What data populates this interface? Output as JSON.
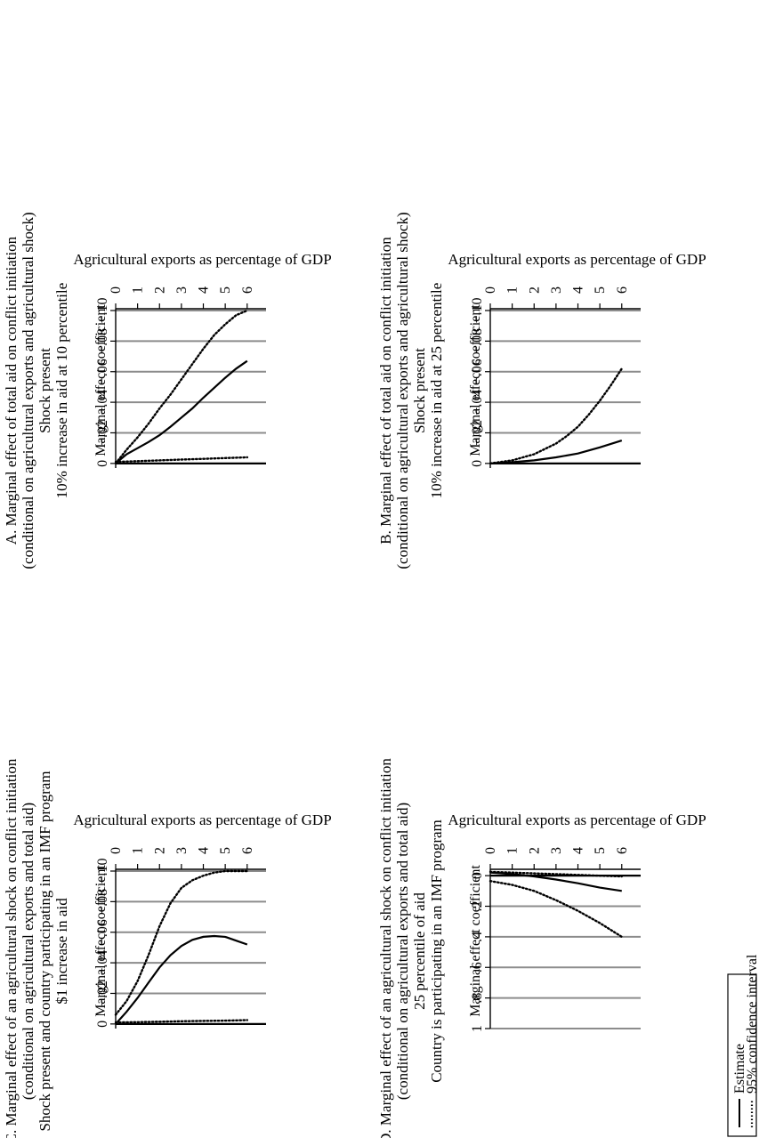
{
  "chart_data": [
    {
      "id": "A",
      "type": "line",
      "title_lines": [
        "A. Marginal effect of total aid on conflict initiation",
        "(conditional on agricultural exports and agricultural shock)",
        "Shock present",
        "10% increase in aid at 10 percentile"
      ],
      "xlabel": "Agricultural exports as percentage of GDP",
      "ylabel": "Marginal effect coefficient",
      "xlim": [
        0,
        6.7
      ],
      "ylim": [
        -0.1,
        0.003
      ],
      "xticks": [
        0,
        1,
        2,
        3,
        4,
        5,
        6
      ],
      "xtick_labels": [
        "0",
        "1",
        "2",
        "3",
        "4",
        "5",
        "6"
      ],
      "yticks": [
        0,
        -0.02,
        -0.04,
        -0.06,
        -0.08,
        -0.1
      ],
      "ytick_labels": [
        "0",
        "−.02",
        "−.04",
        "−.06",
        "−.08",
        "−.10"
      ],
      "gridlines": [
        -0.02,
        -0.04,
        -0.06,
        -0.08,
        -0.1
      ],
      "zero_line": 0,
      "series": [
        {
          "name": "Estimate",
          "style": "solid",
          "x": [
            0,
            0.5,
            1,
            1.5,
            2,
            2.5,
            3,
            3.5,
            4,
            4.5,
            5,
            5.5,
            6
          ],
          "y": [
            0,
            -0.006,
            -0.01,
            -0.014,
            -0.0185,
            -0.024,
            -0.03,
            -0.036,
            -0.043,
            -0.0495,
            -0.056,
            -0.062,
            -0.067
          ]
        },
        {
          "name": "95% confidence interval (upper)",
          "style": "dotted",
          "x": [
            0,
            1,
            2,
            3,
            4,
            5,
            6
          ],
          "y": [
            -0.001,
            -0.0015,
            -0.002,
            -0.0025,
            -0.003,
            -0.0035,
            -0.004
          ]
        },
        {
          "name": "95% confidence interval (lower)",
          "style": "dotted",
          "x": [
            0,
            0.5,
            1,
            1.5,
            2,
            2.5,
            3,
            3.5,
            4,
            4.5,
            5,
            5.5,
            6
          ],
          "y": [
            0,
            -0.009,
            -0.017,
            -0.026,
            -0.036,
            -0.045,
            -0.055,
            -0.065,
            -0.075,
            -0.084,
            -0.091,
            -0.097,
            -0.1
          ]
        }
      ]
    },
    {
      "id": "B",
      "type": "line",
      "title_lines": [
        "B. Marginal effect of total aid on conflict initiation",
        "(conditional on agricultural exports and agricultural shock)",
        "Shock present",
        "10% increase in aid at 25 percentile"
      ],
      "xlabel": "Agricultural exports as percentage of GDP",
      "ylabel": "Marginal effect coefficient",
      "xlim": [
        0,
        6.7
      ],
      "ylim": [
        -0.1,
        0.003
      ],
      "xticks": [
        0,
        1,
        2,
        3,
        4,
        5,
        6
      ],
      "xtick_labels": [
        "0",
        "1",
        "2",
        "3",
        "4",
        "5",
        "6"
      ],
      "yticks": [
        0,
        -0.02,
        -0.04,
        -0.06,
        -0.08,
        -0.1
      ],
      "ytick_labels": [
        "0",
        "−.02",
        "−.04",
        "−.06",
        "−.08",
        "−.10"
      ],
      "gridlines": [
        -0.02,
        -0.04,
        -0.06,
        -0.08,
        -0.1
      ],
      "zero_line": 0,
      "series": [
        {
          "name": "Estimate",
          "style": "solid",
          "x": [
            0,
            1,
            2,
            3,
            4,
            5,
            6
          ],
          "y": [
            0,
            -0.0008,
            -0.002,
            -0.004,
            -0.0065,
            -0.0105,
            -0.015
          ]
        },
        {
          "name": "95% confidence interval (lower)",
          "style": "dotted",
          "x": [
            0,
            1,
            2,
            3,
            3.5,
            4,
            4.5,
            5,
            5.5,
            6
          ],
          "y": [
            0,
            -0.002,
            -0.006,
            -0.013,
            -0.018,
            -0.024,
            -0.032,
            -0.041,
            -0.051,
            -0.062
          ]
        }
      ]
    },
    {
      "id": "C",
      "type": "line",
      "title_lines": [
        "C. Marginal effect of an agricultural shock on conflict initiation",
        "(conditional on agricultural exports and total aid)",
        "Shock present and country participating in an IMF program",
        "$1 increase in aid"
      ],
      "xlabel": "Agricultural exports as percentage of GDP",
      "ylabel": "Marginal effect coefficient",
      "xlim": [
        0,
        6.7
      ],
      "ylim": [
        -0.1,
        0.003
      ],
      "xticks": [
        0,
        1,
        2,
        3,
        4,
        5,
        6
      ],
      "xtick_labels": [
        "0",
        "1",
        "2",
        "3",
        "4",
        "5",
        "6"
      ],
      "yticks": [
        0,
        -0.02,
        -0.04,
        -0.06,
        -0.08,
        -0.1
      ],
      "ytick_labels": [
        "0",
        "−.02",
        "−.04",
        "−.06",
        "−.08",
        "−.10"
      ],
      "gridlines": [
        -0.02,
        -0.04,
        -0.06,
        -0.08,
        -0.1
      ],
      "zero_line": 0,
      "series": [
        {
          "name": "Estimate",
          "style": "solid",
          "x": [
            0,
            0.5,
            1,
            1.5,
            2,
            2.5,
            3,
            3.5,
            4,
            4.5,
            5,
            5.5,
            6
          ],
          "y": [
            0,
            -0.008,
            -0.017,
            -0.027,
            -0.037,
            -0.045,
            -0.051,
            -0.055,
            -0.057,
            -0.0575,
            -0.057,
            -0.0545,
            -0.052
          ]
        },
        {
          "name": "95% confidence interval (upper)",
          "style": "dotted",
          "x": [
            0,
            1,
            2,
            3,
            4,
            5,
            6
          ],
          "y": [
            -0.001,
            -0.0012,
            -0.0015,
            -0.0018,
            -0.002,
            -0.0022,
            -0.0025
          ]
        },
        {
          "name": "95% confidence interval (lower)",
          "style": "dotted",
          "x": [
            0,
            0.5,
            1,
            1.5,
            2,
            2.5,
            3,
            3.5,
            4,
            4.5,
            5,
            5.5,
            6
          ],
          "y": [
            -0.006,
            -0.015,
            -0.028,
            -0.045,
            -0.064,
            -0.079,
            -0.089,
            -0.094,
            -0.097,
            -0.099,
            -0.1,
            -0.1,
            -0.1
          ]
        }
      ]
    },
    {
      "id": "D",
      "type": "line",
      "title_lines": [
        "D. Marginal effect of an agricultural shock on conflict initiation",
        "(conditional on agricultural exports and total aid)",
        "25 percentile of aid",
        "Country is participating in an IMF program"
      ],
      "xlabel": "Agricultural exports as percentage of GDP",
      "ylabel": "Marginal effect coefficient",
      "xlim": [
        0,
        6.7
      ],
      "ylim": [
        -0.03,
        1.0
      ],
      "xticks": [
        0,
        1,
        2,
        3,
        4,
        5,
        6
      ],
      "xtick_labels": [
        "0",
        "1",
        "2",
        "3",
        "4",
        "5",
        "6"
      ],
      "yticks": [
        0,
        0.2,
        0.4,
        0.6,
        0.8,
        1.0
      ],
      "ytick_labels": [
        "0",
        ".2",
        ".4",
        ".6",
        ".8",
        "1"
      ],
      "gridlines": [
        0.2,
        0.4,
        0.6,
        0.8,
        1.0
      ],
      "zero_line": 0,
      "series": [
        {
          "name": "Estimate",
          "style": "solid",
          "x": [
            0,
            1,
            2,
            3,
            4,
            5,
            6
          ],
          "y": [
            -0.02,
            -0.01,
            0.005,
            0.025,
            0.05,
            0.078,
            0.1
          ]
        },
        {
          "name": "95% confidence interval (upper)",
          "style": "dotted",
          "x": [
            0,
            1,
            2,
            3,
            4,
            5,
            6
          ],
          "y": [
            0.035,
            0.06,
            0.1,
            0.16,
            0.23,
            0.31,
            0.4
          ]
        },
        {
          "name": "95% confidence interval (lower)",
          "style": "dotted",
          "x": [
            0,
            1,
            2,
            3,
            4,
            5,
            6
          ],
          "y": [
            -0.025,
            -0.02,
            -0.015,
            -0.01,
            -0.005,
            0,
            0.005
          ]
        }
      ]
    }
  ],
  "legend": {
    "position": "bottom-left",
    "items": [
      {
        "label": "Estimate",
        "style": "solid"
      },
      {
        "label": "95% confidence interval",
        "style": "dotted"
      }
    ]
  },
  "colors": {
    "gridline": "#8c8c8c",
    "line": "#000000",
    "background": "#ffffff"
  }
}
